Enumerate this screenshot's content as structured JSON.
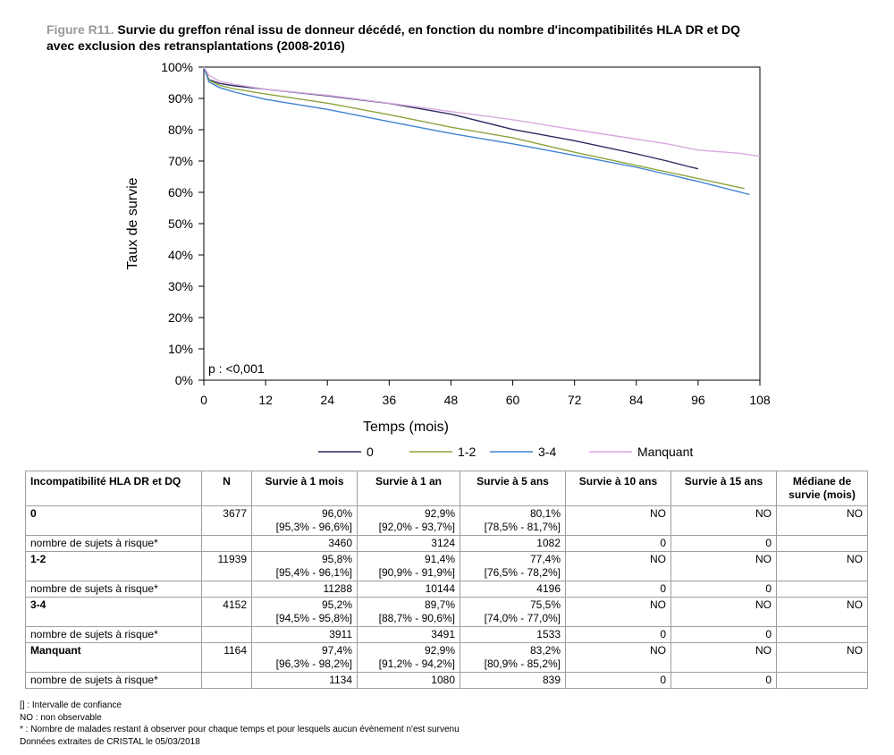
{
  "title": {
    "prefix": "Figure R11.",
    "line1": "Survie du greffon rénal issu de donneur décédé, en fonction du nombre d'incompatibilités HLA DR et DQ",
    "line2": "avec exclusion des retransplantations (2008-2016)"
  },
  "chart_data": {
    "type": "line",
    "xlabel": "Temps (mois)",
    "ylabel": "Taux de survie",
    "xlim": [
      0,
      108
    ],
    "ylim": [
      0,
      100
    ],
    "xticks": [
      0,
      12,
      24,
      36,
      48,
      60,
      72,
      84,
      96,
      108
    ],
    "yticks": [
      "0%",
      "10%",
      "20%",
      "30%",
      "40%",
      "50%",
      "60%",
      "70%",
      "80%",
      "90%",
      "100%"
    ],
    "annotation": "p : <0,001",
    "legend_position": "bottom",
    "series": [
      {
        "name": "0",
        "color": "#2a2a5e",
        "x": [
          0,
          1,
          3,
          6,
          12,
          24,
          36,
          48,
          60,
          72,
          84,
          90,
          94,
          96
        ],
        "y": [
          100,
          96.0,
          94.8,
          94.0,
          92.9,
          90.8,
          88.4,
          85.0,
          80.1,
          76.5,
          72.3,
          70.0,
          68.3,
          67.5
        ]
      },
      {
        "name": "1-2",
        "color": "#8aa43c",
        "x": [
          0,
          1,
          3,
          6,
          12,
          24,
          36,
          48,
          60,
          72,
          84,
          96,
          105
        ],
        "y": [
          100,
          95.8,
          94.2,
          93.0,
          91.4,
          88.5,
          84.8,
          80.8,
          77.4,
          72.8,
          68.6,
          64.4,
          61.2
        ]
      },
      {
        "name": "3-4",
        "color": "#3f82d0",
        "x": [
          0,
          1,
          3,
          6,
          12,
          24,
          36,
          48,
          60,
          72,
          84,
          96,
          106
        ],
        "y": [
          100,
          95.2,
          93.5,
          92.0,
          89.7,
          86.5,
          82.6,
          78.8,
          75.5,
          71.8,
          68.0,
          63.5,
          59.3
        ]
      },
      {
        "name": "Manquant",
        "color": "#d9a9e0",
        "x": [
          0,
          1,
          3,
          6,
          12,
          24,
          36,
          48,
          60,
          72,
          84,
          90,
          96,
          104,
          108
        ],
        "y": [
          100,
          97.4,
          95.5,
          94.5,
          92.9,
          91.0,
          88.5,
          85.8,
          83.2,
          80.0,
          77.0,
          75.5,
          73.5,
          72.5,
          71.5
        ]
      }
    ]
  },
  "table": {
    "headers": [
      "Incompatibilité HLA DR et DQ",
      "N",
      "Survie à 1 mois",
      "Survie à 1 an",
      "Survie à 5 ans",
      "Survie à 10 ans",
      "Survie à 15 ans",
      "Médiane de survie (mois)"
    ],
    "groups": [
      {
        "label": "0",
        "n": "3677",
        "values": [
          "96,0%",
          "92,9%",
          "80,1%",
          "NO",
          "NO",
          "NO"
        ],
        "ci": [
          "[95,3% - 96,6%]",
          "[92,0% - 93,7%]",
          "[78,5% - 81,7%]"
        ],
        "risk_label": "nombre de sujets à risque*",
        "risk": [
          "3460",
          "3124",
          "1082",
          "0",
          "0",
          ""
        ]
      },
      {
        "label": "1-2",
        "n": "11939",
        "values": [
          "95,8%",
          "91,4%",
          "77,4%",
          "NO",
          "NO",
          "NO"
        ],
        "ci": [
          "[95,4% - 96,1%]",
          "[90,9% - 91,9%]",
          "[76,5% - 78,2%]"
        ],
        "risk_label": "nombre de sujets à risque*",
        "risk": [
          "11288",
          "10144",
          "4196",
          "0",
          "0",
          ""
        ]
      },
      {
        "label": "3-4",
        "n": "4152",
        "values": [
          "95,2%",
          "89,7%",
          "75,5%",
          "NO",
          "NO",
          "NO"
        ],
        "ci": [
          "[94,5% - 95,8%]",
          "[88,7% - 90,6%]",
          "[74,0% - 77,0%]"
        ],
        "risk_label": "nombre de sujets à risque*",
        "risk": [
          "3911",
          "3491",
          "1533",
          "0",
          "0",
          ""
        ]
      },
      {
        "label": "Manquant",
        "n": "1164",
        "values": [
          "97,4%",
          "92,9%",
          "83,2%",
          "NO",
          "NO",
          "NO"
        ],
        "ci": [
          "[96,3% - 98,2%]",
          "[91,2% - 94,2%]",
          "[80,9% - 85,2%]"
        ],
        "risk_label": "nombre de sujets à risque*",
        "risk": [
          "1134",
          "1080",
          "839",
          "0",
          "0",
          ""
        ]
      }
    ]
  },
  "footnotes": [
    "[] : Intervalle de confiance",
    "NO : non observable",
    "* : Nombre de malades restant à observer pour chaque temps et pour lesquels aucun évènement n'est survenu",
    "Données extraites de CRISTAL le 05/03/2018"
  ]
}
